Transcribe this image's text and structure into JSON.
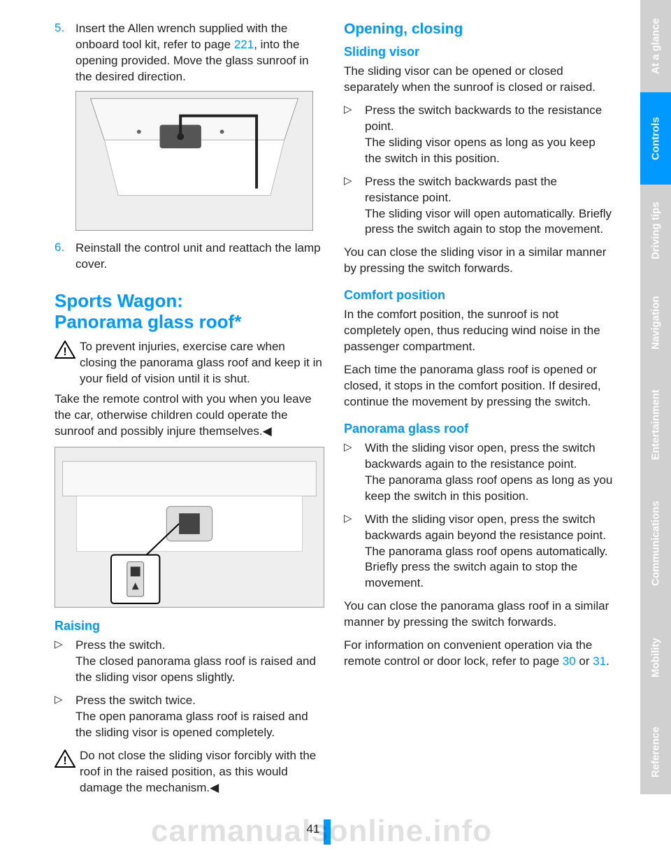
{
  "colors": {
    "accent": "#0099ff",
    "tab_inactive_bg": "#d0d0d0",
    "tab_text": "#ffffff",
    "body_text": "#222222"
  },
  "left": {
    "step5_num": "5.",
    "step5_a": "Insert the Allen wrench supplied with the onboard tool kit, refer to page ",
    "step5_link": "221",
    "step5_b": ", into the opening provided. Move the glass sunroof in the desired direction.",
    "step6_num": "6.",
    "step6": "Reinstall the control unit and reattach the lamp cover.",
    "h1_a": "Sports Wagon:",
    "h1_b": "Panorama glass roof*",
    "warn1": "To prevent injuries, exercise care when closing the panorama glass roof and keep it in your field of vision until it is shut.",
    "warn1b": "Take the remote control with you when you leave the car, otherwise children could operate the sunroof and possibly injure themselves.◀",
    "raising_h": "Raising",
    "r1": "Press the switch.",
    "r1b": "The closed panorama glass roof is raised and the sliding visor opens slightly.",
    "r2": "Press the switch twice.",
    "r2b": "The open panorama glass roof is raised and the sliding visor is opened completely.",
    "warn2": "Do not close the sliding visor forcibly with the roof in the raised position, as this would damage the mechanism.◀"
  },
  "right": {
    "h2": "Opening, closing",
    "sv_h": "Sliding visor",
    "sv_p": "The sliding visor can be opened or closed separately when the sunroof is closed or raised.",
    "sv1": "Press the switch backwards to the resistance point.",
    "sv1b": "The sliding visor opens as long as you keep the switch in this position.",
    "sv2": "Press the switch backwards past the resistance point.",
    "sv2b": "The sliding visor will open automatically. Briefly press the switch again to stop the movement.",
    "sv_close": "You can close the sliding visor in a similar manner by pressing the switch forwards.",
    "cp_h": "Comfort position",
    "cp1": "In the comfort position, the sunroof is not completely open, thus reducing wind noise in the passenger compartment.",
    "cp2": "Each time the panorama glass roof is opened or closed, it stops in the comfort position. If desired, continue the movement by pressing the switch.",
    "pg_h": "Panorama glass roof",
    "pg1": "With the sliding visor open, press the switch backwards again to the resistance point.",
    "pg1b": "The panorama glass roof opens as long as you keep the switch in this position.",
    "pg2": "With the sliding visor open, press the switch backwards again beyond the resistance point.",
    "pg2b": "The panorama glass roof opens automatically. Briefly press the switch again to stop the movement.",
    "pg_close": "You can close the panorama glass roof in a similar manner by pressing the switch forwards.",
    "info_a": "For information on convenient operation via the remote control or door lock, refer to page ",
    "info_link1": "30",
    "info_b": " or ",
    "info_link2": "31",
    "info_c": "."
  },
  "tabs": [
    {
      "label": "At a glance",
      "active": false,
      "h": 132
    },
    {
      "label": "Controls",
      "active": true,
      "h": 132
    },
    {
      "label": "Driving tips",
      "active": false,
      "h": 132
    },
    {
      "label": "Navigation",
      "active": false,
      "h": 132
    },
    {
      "label": "Entertainment",
      "active": false,
      "h": 160
    },
    {
      "label": "Communications",
      "active": false,
      "h": 178
    },
    {
      "label": "Mobility",
      "active": false,
      "h": 150
    },
    {
      "label": "Reference",
      "active": false,
      "h": 120
    }
  ],
  "page_number": "41",
  "watermark": "carmanualsonline.info",
  "bullet_glyph": "▷"
}
